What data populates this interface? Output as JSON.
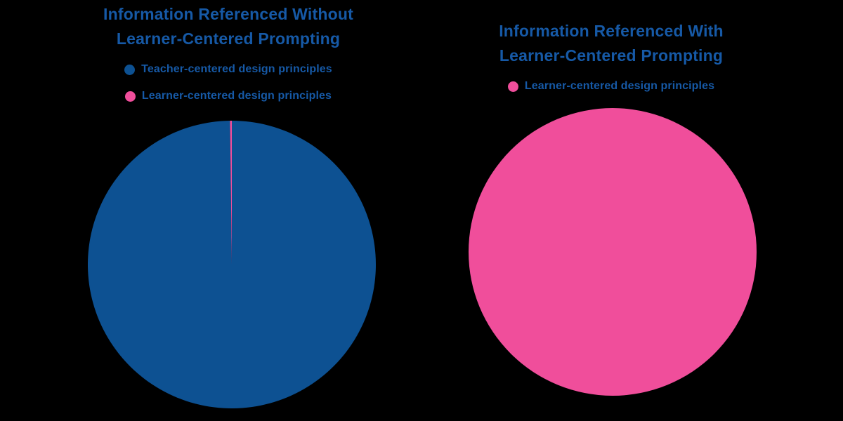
{
  "background_color": "#000000",
  "text_color": "#1659A6",
  "chart_data": [
    {
      "type": "pie",
      "title": "Information Referenced Without Learner-Centered Prompting",
      "title_lines": [
        "Information Referenced Without",
        "Learner-Centered Prompting"
      ],
      "unit": "percent",
      "legend_position": "top",
      "start_angle_deg": -90,
      "direction": "clockwise",
      "slices": [
        {
          "label": "Teacher-centered design principles",
          "value": 99.8,
          "color": "#0D5192"
        },
        {
          "label": "Learner-centered design principles",
          "value": 0.2,
          "color": "#F04E9B"
        }
      ]
    },
    {
      "type": "pie",
      "title": "Information Referenced With Learner-Centered Prompting",
      "title_lines": [
        "Information Referenced With",
        "Learner-Centered Prompting"
      ],
      "unit": "percent",
      "legend_position": "top",
      "start_angle_deg": -90,
      "direction": "clockwise",
      "slices": [
        {
          "label": "Learner-centered design principles",
          "value": 100,
          "color": "#F04E9B"
        }
      ]
    }
  ]
}
